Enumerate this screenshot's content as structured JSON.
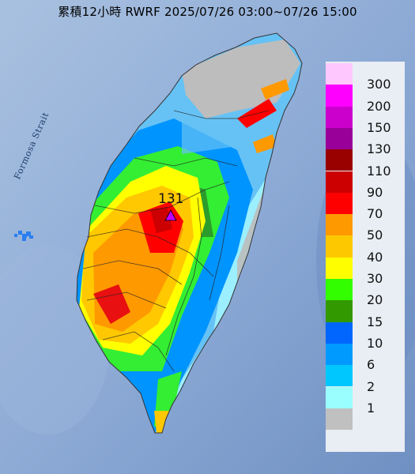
{
  "title": "累積12小時 RWRF 2025/07/26 03:00~07/26 15:00",
  "water_label": "Formosa Strait",
  "max_marker": {
    "value": "131",
    "symbol_color": "#c000ff"
  },
  "legend": {
    "colors": [
      "#fec8fe",
      "#fe00fe",
      "#cc00cc",
      "#990099",
      "#990000",
      "#cc0000",
      "#fe0000",
      "#fe9900",
      "#fec800",
      "#fefe00",
      "#33fe00",
      "#339900",
      "#0066fe",
      "#0099fe",
      "#00c8fe",
      "#9bfefe",
      "#c0c0c0"
    ],
    "labels": [
      "300",
      "200",
      "150",
      "130",
      "110",
      "90",
      "70",
      "50",
      "40",
      "30",
      "20",
      "15",
      "10",
      "6",
      "2",
      "1"
    ]
  }
}
